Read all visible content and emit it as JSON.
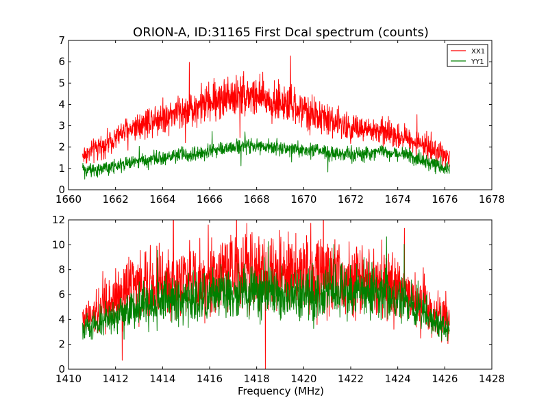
{
  "figure": {
    "title": "ORION-A, ID:31165 First Dcal spectrum (counts)",
    "xlabel_bottom": "Frequency (MHz)"
  },
  "colors": {
    "xx1": "#ff0000",
    "yy1": "#008000",
    "axes": "#000000",
    "background": "#ffffff"
  },
  "chart_data": [
    {
      "type": "line",
      "title": "ORION-A, ID:31165 First Dcal spectrum (counts)",
      "xlabel": "",
      "ylabel": "",
      "xlim": [
        1660,
        1678
      ],
      "ylim": [
        0,
        7
      ],
      "xticks": [
        1660,
        1662,
        1664,
        1666,
        1668,
        1670,
        1672,
        1674,
        1676,
        1678
      ],
      "yticks": [
        0,
        1,
        2,
        3,
        4,
        5,
        6,
        7
      ],
      "legend": {
        "position": "top-right",
        "entries": [
          "XX1",
          "YY1"
        ]
      },
      "grid": false,
      "series": [
        {
          "name": "XX1",
          "color": "#ff0000",
          "x": [
            1660.6,
            1661.5,
            1662.5,
            1663.5,
            1664.5,
            1665.5,
            1666.5,
            1667.5,
            1668.5,
            1669.5,
            1670.5,
            1671.5,
            1672.5,
            1673.5,
            1674.5,
            1675.5,
            1676.2
          ],
          "values": [
            1.6,
            2.1,
            2.8,
            3.3,
            3.6,
            3.9,
            4.3,
            4.5,
            4.2,
            3.9,
            3.5,
            3.1,
            2.8,
            2.7,
            2.4,
            1.9,
            1.5
          ],
          "noise": 0.45
        },
        {
          "name": "YY1",
          "color": "#008000",
          "x": [
            1660.6,
            1661.5,
            1662.5,
            1663.5,
            1664.5,
            1665.5,
            1666.5,
            1667.5,
            1668.5,
            1669.5,
            1670.5,
            1671.5,
            1672.5,
            1673.5,
            1674.5,
            1675.5,
            1676.2
          ],
          "values": [
            0.9,
            1.0,
            1.2,
            1.4,
            1.6,
            1.7,
            1.9,
            2.1,
            2.0,
            1.9,
            1.8,
            1.7,
            1.7,
            1.8,
            1.6,
            1.2,
            0.9
          ],
          "noise": 0.3
        }
      ]
    },
    {
      "type": "line",
      "title": "",
      "xlabel": "Frequency (MHz)",
      "ylabel": "",
      "xlim": [
        1410,
        1428
      ],
      "ylim": [
        0,
        12
      ],
      "xticks": [
        1410,
        1412,
        1414,
        1416,
        1418,
        1420,
        1422,
        1424,
        1426,
        1428
      ],
      "yticks": [
        0,
        2,
        4,
        6,
        8,
        10,
        12
      ],
      "grid": false,
      "series": [
        {
          "name": "XX1",
          "color": "#ff0000",
          "x": [
            1410.6,
            1411.5,
            1412.5,
            1413.5,
            1414.5,
            1415.5,
            1416.5,
            1417.5,
            1418.5,
            1419.5,
            1420.5,
            1421.5,
            1422.5,
            1423.5,
            1424.5,
            1425.5,
            1426.2
          ],
          "values": [
            3.8,
            5.2,
            6.3,
            6.9,
            7.0,
            7.1,
            7.8,
            8.0,
            7.7,
            7.5,
            7.6,
            7.5,
            7.3,
            6.9,
            6.0,
            4.7,
            3.9
          ],
          "noise": 0.8
        },
        {
          "name": "YY1",
          "color": "#008000",
          "x": [
            1410.6,
            1411.5,
            1412.5,
            1413.5,
            1414.5,
            1415.5,
            1416.5,
            1417.5,
            1418.5,
            1419.5,
            1420.5,
            1421.5,
            1422.5,
            1423.5,
            1424.5,
            1425.5,
            1426.2
          ],
          "values": [
            3.0,
            3.9,
            4.6,
            5.2,
            5.5,
            5.7,
            6.1,
            6.3,
            6.0,
            5.9,
            6.0,
            6.2,
            6.2,
            6.0,
            5.3,
            4.0,
            3.1
          ],
          "noise": 0.65
        }
      ]
    }
  ]
}
